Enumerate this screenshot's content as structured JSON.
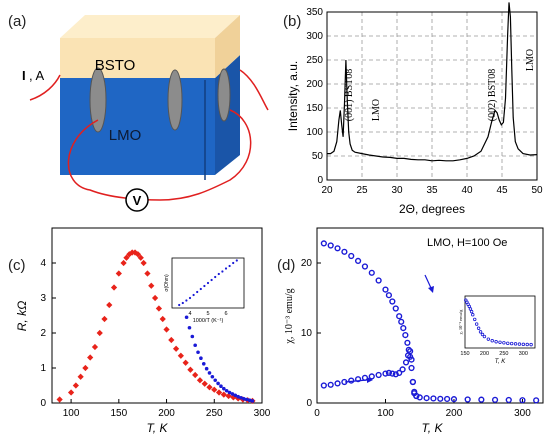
{
  "panel_a": {
    "tag": "(a)",
    "top_label": "BSTO",
    "bottom_label": "LMO",
    "current_label": "I",
    "current_unit": ", A",
    "voltage_label": "V"
  },
  "chart_data": [
    {
      "id": "b",
      "tag": "(b)",
      "type": "line",
      "xlabel": "2Θ, degrees",
      "ylabel": "Intensity, a.u.",
      "xlim": [
        20,
        50
      ],
      "ylim": [
        0,
        350
      ],
      "xticks": [
        20,
        25,
        30,
        35,
        40,
        45,
        50
      ],
      "yticks": [
        0,
        50,
        100,
        150,
        200,
        250,
        300,
        350
      ],
      "grid": "dashed",
      "annotations": [
        "(001) BST08",
        "LMO",
        "(002) BST08",
        "LMO"
      ],
      "series": [
        {
          "x": [
            20.0,
            20.5,
            21.0,
            21.4,
            21.7,
            21.9,
            22.1,
            22.3,
            22.5,
            22.7,
            22.9,
            23.1,
            23.3,
            23.6,
            24.0,
            25.0,
            26.0,
            27.0,
            28.0,
            29.0,
            30.0,
            31.0,
            32.0,
            33.0,
            34.0,
            35.0,
            36.0,
            37.0,
            38.0,
            39.0,
            40.0,
            41.0,
            42.0,
            43.0,
            43.5,
            44.0,
            44.3,
            44.6,
            44.9,
            45.2,
            45.5,
            45.8,
            46.0,
            46.2,
            46.4,
            46.6,
            46.9,
            47.3,
            48.0,
            49.0,
            50.0
          ],
          "values": [
            55,
            55,
            60,
            80,
            125,
            145,
            115,
            90,
            160,
            250,
            165,
            100,
            75,
            62,
            58,
            55,
            52,
            50,
            48,
            47,
            45,
            45,
            43,
            42,
            42,
            40,
            41,
            40,
            40,
            42,
            45,
            50,
            60,
            90,
            120,
            145,
            140,
            125,
            115,
            120,
            170,
            300,
            370,
            340,
            230,
            130,
            80,
            65,
            55,
            52,
            53
          ]
        }
      ]
    },
    {
      "id": "c",
      "tag": "(c)",
      "type": "scatter",
      "xlabel": "T, K",
      "ylabel": "R, kΩ",
      "xlim": [
        80,
        300
      ],
      "ylim": [
        0,
        5
      ],
      "xticks": [
        100,
        150,
        200,
        250,
        300
      ],
      "yticks": [
        0,
        1,
        2,
        3,
        4
      ],
      "series": [
        {
          "color": "#e8231a",
          "marker": "diamond",
          "x": [
            88,
            100,
            105,
            110,
            115,
            120,
            125,
            130,
            135,
            140,
            145,
            150,
            155,
            158,
            161,
            164,
            167,
            170,
            173,
            176,
            180,
            184,
            188,
            192,
            196,
            200,
            205,
            210,
            215,
            220,
            225,
            230,
            235,
            240,
            245,
            250,
            255,
            260,
            265,
            270,
            275,
            280,
            285,
            290
          ],
          "values": [
            0.1,
            0.3,
            0.5,
            0.75,
            1.0,
            1.3,
            1.6,
            2.0,
            2.4,
            2.8,
            3.3,
            3.7,
            4.0,
            4.15,
            4.25,
            4.3,
            4.3,
            4.25,
            4.15,
            4.0,
            3.7,
            3.35,
            3.0,
            2.7,
            2.4,
            2.1,
            1.8,
            1.55,
            1.35,
            1.15,
            0.95,
            0.8,
            0.65,
            0.55,
            0.45,
            0.38,
            0.3,
            0.24,
            0.2,
            0.16,
            0.13,
            0.1,
            0.08,
            0.06
          ]
        },
        {
          "color": "#1a1ad6",
          "marker": "dot",
          "x": [
            212,
            215,
            218,
            221,
            224,
            227,
            230,
            233,
            236,
            239,
            242,
            245,
            248,
            251,
            254,
            257,
            260,
            263,
            266,
            269,
            272,
            275,
            278,
            281,
            284,
            287,
            290
          ],
          "values": [
            3.7,
            3.2,
            2.8,
            2.45,
            2.15,
            1.9,
            1.65,
            1.45,
            1.28,
            1.12,
            0.98,
            0.86,
            0.75,
            0.65,
            0.56,
            0.48,
            0.41,
            0.35,
            0.3,
            0.26,
            0.22,
            0.18,
            0.15,
            0.12,
            0.1,
            0.08,
            0.06
          ]
        }
      ],
      "inset": {
        "xlabel": "1000/T (K⁻¹)",
        "ylabel": "σ(Ohm)",
        "xlim": [
          3,
          7
        ],
        "ylim": [
          0,
          1
        ],
        "xticks": [
          4,
          5,
          6
        ],
        "x": [
          3.4,
          3.6,
          3.8,
          4.0,
          4.2,
          4.4,
          4.6,
          4.8,
          5.0,
          5.2,
          5.4,
          5.6,
          5.8,
          6.0,
          6.2,
          6.4,
          6.6
        ],
        "values": [
          0.06,
          0.1,
          0.15,
          0.2,
          0.26,
          0.32,
          0.38,
          0.44,
          0.5,
          0.56,
          0.62,
          0.68,
          0.73,
          0.79,
          0.84,
          0.9,
          0.95
        ]
      }
    },
    {
      "id": "d",
      "tag": "(d)",
      "type": "scatter",
      "xlabel": "T, K",
      "ylabel": "χ, 10⁻³ emu/g",
      "legend": "LMO, H=100 Oe",
      "xlim": [
        0,
        330
      ],
      "ylim": [
        0,
        25
      ],
      "xticks": [
        0,
        100,
        200,
        300
      ],
      "yticks": [
        0,
        10,
        20
      ],
      "series": [
        {
          "name": "",
          "color": "#1a1ad6",
          "x": [
            10,
            20,
            30,
            40,
            50,
            60,
            70,
            80,
            90,
            100,
            105,
            110,
            115,
            120,
            123,
            126,
            129,
            132,
            134,
            136,
            138,
            140,
            142,
            145,
            150,
            160,
            170,
            180,
            190,
            200,
            220,
            240,
            260,
            280,
            300,
            320
          ],
          "values": [
            22.8,
            22.5,
            22.1,
            21.6,
            21.0,
            20.3,
            19.5,
            18.6,
            17.5,
            16.2,
            15.4,
            14.5,
            13.5,
            12.4,
            11.6,
            10.7,
            9.7,
            8.6,
            7.6,
            6.6,
            5.0,
            3.0,
            1.6,
            1.0,
            0.8,
            0.7,
            0.65,
            0.6,
            0.58,
            0.55,
            0.5,
            0.48,
            0.45,
            0.43,
            0.4,
            0.38
          ]
        },
        {
          "name": "",
          "color": "#1a1ad6",
          "x": [
            10,
            20,
            30,
            40,
            50,
            60,
            70,
            80,
            90,
            100,
            105,
            110,
            115,
            120,
            125,
            130,
            133,
            136,
            138,
            140,
            142,
            145
          ],
          "values": [
            2.5,
            2.6,
            2.8,
            3.0,
            3.2,
            3.4,
            3.6,
            3.8,
            4.0,
            4.2,
            4.3,
            4.2,
            4.1,
            4.3,
            4.8,
            5.8,
            6.8,
            7.4,
            6.2,
            3.0,
            1.4,
            1.0
          ]
        }
      ],
      "inset": {
        "xlabel": "T, K",
        "ylabel": "χ, 10⁻³ emu/g",
        "xlim": [
          150,
          330
        ],
        "ylim": [
          0,
          1
        ],
        "xticks": [
          150,
          200,
          250,
          300
        ],
        "x": [
          152,
          155,
          158,
          161,
          164,
          167,
          170,
          175,
          180,
          185,
          190,
          195,
          200,
          210,
          220,
          230,
          240,
          250,
          260,
          270,
          280,
          290,
          300,
          310,
          320
        ],
        "values": [
          0.92,
          0.88,
          0.84,
          0.8,
          0.75,
          0.7,
          0.64,
          0.55,
          0.46,
          0.38,
          0.31,
          0.26,
          0.22,
          0.17,
          0.14,
          0.12,
          0.11,
          0.1,
          0.09,
          0.085,
          0.08,
          0.075,
          0.07,
          0.068,
          0.065
        ]
      }
    }
  ]
}
